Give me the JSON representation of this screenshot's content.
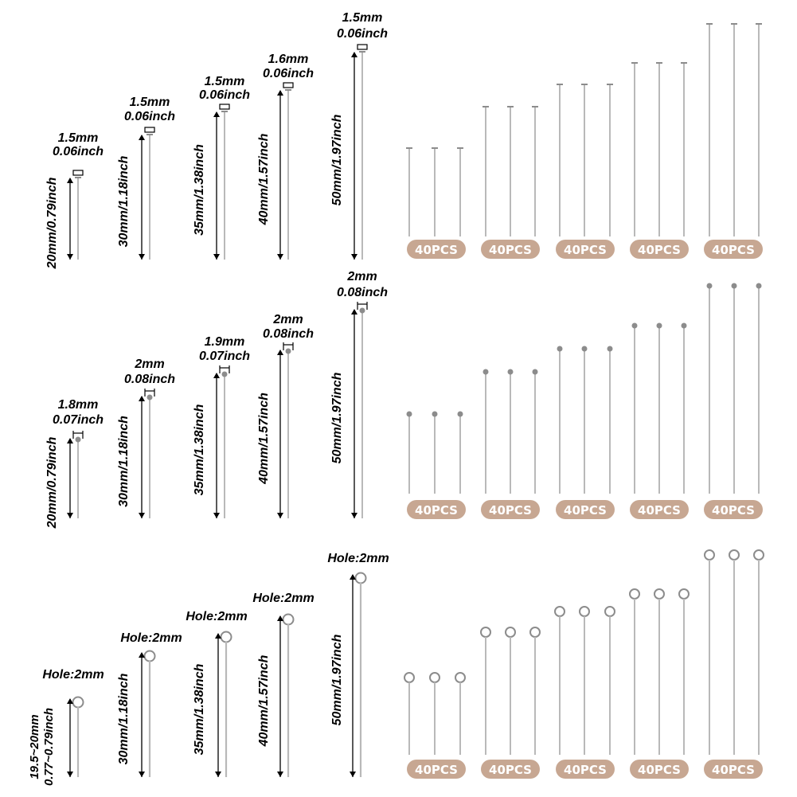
{
  "colors": {
    "badge": "#c7a792",
    "pin": "#b9b9b9",
    "pin_dark": "#8c8c8c",
    "text": "#000000"
  },
  "rows": [
    {
      "kind": "flat-head",
      "pins": [
        {
          "head": [
            "1.5mm",
            "0.06inch"
          ],
          "length": "20mm/0.79inch"
        },
        {
          "head": [
            "1.5mm",
            "0.06inch"
          ],
          "length": "30mm/1.18inch"
        },
        {
          "head": [
            "1.5mm",
            "0.06inch"
          ],
          "length": "35mm/1.38inch"
        },
        {
          "head": [
            "1.6mm",
            "0.06inch"
          ],
          "length": "40mm/1.57inch"
        },
        {
          "head": [
            "1.5mm",
            "0.06inch"
          ],
          "length": "50mm/1.97inch"
        }
      ],
      "groups": [
        "40PCS",
        "40PCS",
        "40PCS",
        "40PCS",
        "40PCS"
      ]
    },
    {
      "kind": "ball-head",
      "pins": [
        {
          "head": [
            "1.8mm",
            "0.07inch"
          ],
          "length": "20mm/0.79inch"
        },
        {
          "head": [
            "2mm",
            "0.08inch"
          ],
          "length": "30mm/1.18inch"
        },
        {
          "head": [
            "1.9mm",
            "0.07inch"
          ],
          "length": "35mm/1.38inch"
        },
        {
          "head": [
            "2mm",
            "0.08inch"
          ],
          "length": "40mm/1.57inch"
        },
        {
          "head": [
            "2mm",
            "0.08inch"
          ],
          "length": "50mm/1.97inch"
        }
      ],
      "groups": [
        "40PCS",
        "40PCS",
        "40PCS",
        "40PCS",
        "40PCS"
      ]
    },
    {
      "kind": "eye-pin",
      "pins": [
        {
          "head": [
            "Hole:2mm"
          ],
          "length": "19.5~20mm",
          "length2": "0.77~0.79inch"
        },
        {
          "head": [
            "Hole:2mm"
          ],
          "length": "30mm/1.18inch"
        },
        {
          "head": [
            "Hole:2mm"
          ],
          "length": "35mm/1.38inch"
        },
        {
          "head": [
            "Hole:2mm"
          ],
          "length": "40mm/1.57inch"
        },
        {
          "head": [
            "Hole:2mm"
          ],
          "length": "50mm/1.97inch"
        }
      ],
      "groups": [
        "40PCS",
        "40PCS",
        "40PCS",
        "40PCS",
        "40PCS"
      ]
    }
  ]
}
